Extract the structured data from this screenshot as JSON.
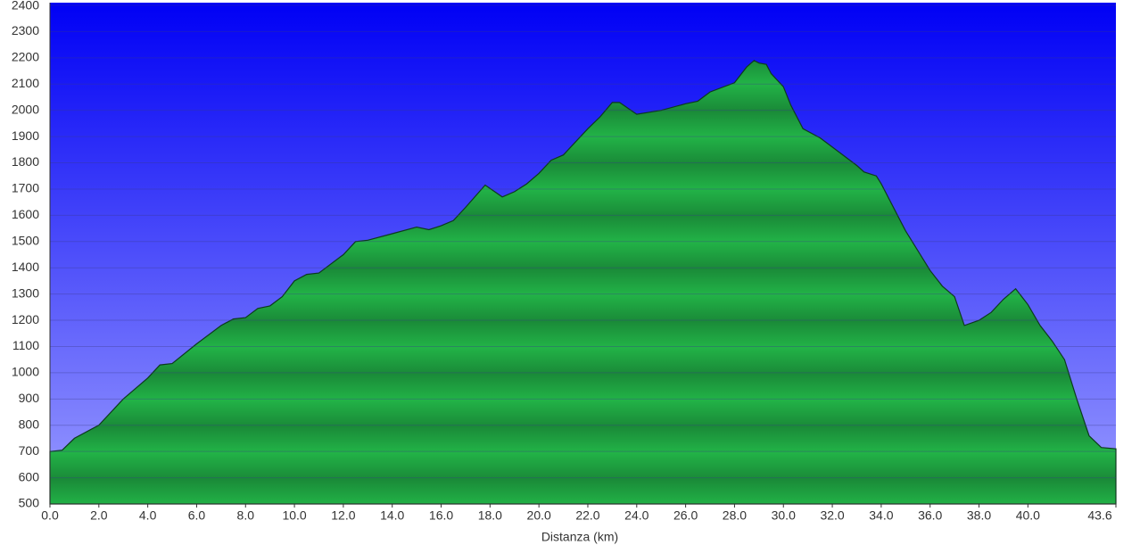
{
  "chart_data": {
    "type": "area",
    "x_label": "Distanza  (km)",
    "x": [
      0,
      0.5,
      1,
      2,
      3,
      4,
      4.5,
      5,
      6,
      7,
      7.5,
      8,
      8.5,
      9,
      9.5,
      10,
      10.5,
      11,
      12,
      12.5,
      13,
      14,
      15,
      15.5,
      16,
      16.5,
      17,
      17.8,
      18.5,
      19,
      19.5,
      20,
      20.5,
      21,
      22,
      22.5,
      23,
      23.3,
      24,
      25,
      26,
      26.5,
      27,
      28,
      28.5,
      28.8,
      29,
      29.3,
      29.5,
      30,
      30.3,
      30.8,
      31.5,
      32,
      33,
      33.3,
      33.8,
      34,
      35,
      36,
      36.5,
      37,
      37.4,
      38,
      38.5,
      39,
      39.5,
      40,
      40.5,
      41,
      41.5,
      42,
      42.5,
      43,
      43.6
    ],
    "values": [
      700,
      705,
      750,
      800,
      900,
      980,
      1030,
      1035,
      1110,
      1180,
      1205,
      1210,
      1245,
      1255,
      1290,
      1350,
      1375,
      1380,
      1450,
      1500,
      1505,
      1530,
      1555,
      1545,
      1560,
      1580,
      1630,
      1715,
      1670,
      1690,
      1720,
      1760,
      1810,
      1830,
      1930,
      1975,
      2030,
      2030,
      1985,
      2000,
      2025,
      2035,
      2070,
      2105,
      2165,
      2190,
      2180,
      2175,
      2140,
      2090,
      2020,
      1930,
      1895,
      1860,
      1790,
      1765,
      1750,
      1720,
      1540,
      1390,
      1330,
      1290,
      1180,
      1200,
      1230,
      1280,
      1320,
      1260,
      1180,
      1120,
      1050,
      900,
      760,
      715,
      710
    ],
    "color": "#22b347",
    "xlim": [
      0,
      43.6
    ],
    "ylim": [
      500,
      2400
    ],
    "xticks": [
      {
        "value": 0,
        "label": "0.0"
      },
      {
        "value": 2,
        "label": "2.0"
      },
      {
        "value": 4,
        "label": "4.0"
      },
      {
        "value": 6,
        "label": "6.0"
      },
      {
        "value": 8,
        "label": "8.0"
      },
      {
        "value": 10,
        "label": "10.0"
      },
      {
        "value": 12,
        "label": "12.0"
      },
      {
        "value": 14,
        "label": "14.0"
      },
      {
        "value": 16,
        "label": "16.0"
      },
      {
        "value": 18,
        "label": "18.0"
      },
      {
        "value": 20,
        "label": "20.0"
      },
      {
        "value": 22,
        "label": "22.0"
      },
      {
        "value": 24,
        "label": "24.0"
      },
      {
        "value": 26,
        "label": "26.0"
      },
      {
        "value": 28,
        "label": "28.0"
      },
      {
        "value": 30,
        "label": "30.0"
      },
      {
        "value": 32,
        "label": "32.0"
      },
      {
        "value": 34,
        "label": "34.0"
      },
      {
        "value": 36,
        "label": "36.0"
      },
      {
        "value": 38,
        "label": "38.0"
      },
      {
        "value": 40,
        "label": "40.0"
      },
      43.6
    ],
    "yticks": [
      500,
      600,
      700,
      800,
      900,
      1000,
      1100,
      1200,
      1300,
      1400,
      1500,
      1600,
      1700,
      1800,
      1900,
      2000,
      2100,
      2200,
      2300,
      2400
    ],
    "grid": true
  }
}
